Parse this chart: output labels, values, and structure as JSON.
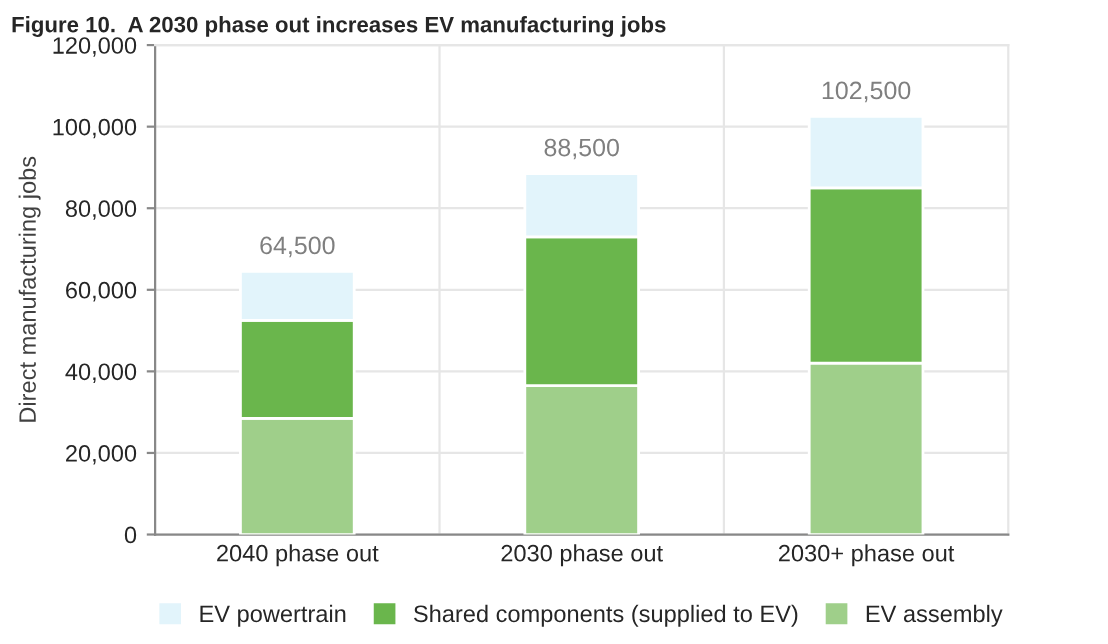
{
  "chart_data": {
    "type": "bar",
    "title": "Figure 10.  A 2030 phase out increases EV manufacturing jobs",
    "ylabel": "Direct manufacturing jobs",
    "categories": [
      "2040 phase out",
      "2030 phase out",
      "2030+ phase out"
    ],
    "stacked": true,
    "series": [
      {
        "name": "EV assembly",
        "color": "#9fcf8a",
        "values": [
          28500,
          36500,
          42000
        ]
      },
      {
        "name": "Shared components (supplied to EV)",
        "color": "#6ab64c",
        "values": [
          24000,
          36500,
          43000
        ]
      },
      {
        "name": "EV powertrain",
        "color": "#e2f4fb",
        "values": [
          12000,
          15500,
          17500
        ]
      }
    ],
    "totals": [
      "64,500",
      "88,500",
      "102,500"
    ],
    "ylim": [
      0,
      120000
    ],
    "yticks": [
      {
        "value": 0,
        "label": "0"
      },
      {
        "value": 20000,
        "label": "20,000"
      },
      {
        "value": 40000,
        "label": "40,000"
      },
      {
        "value": 60000,
        "label": "60,000"
      },
      {
        "value": 80000,
        "label": "80,000"
      },
      {
        "value": 100000,
        "label": "100,000"
      },
      {
        "value": 120000,
        "label": "120,000"
      }
    ],
    "grid": true,
    "legend": "bottom"
  }
}
